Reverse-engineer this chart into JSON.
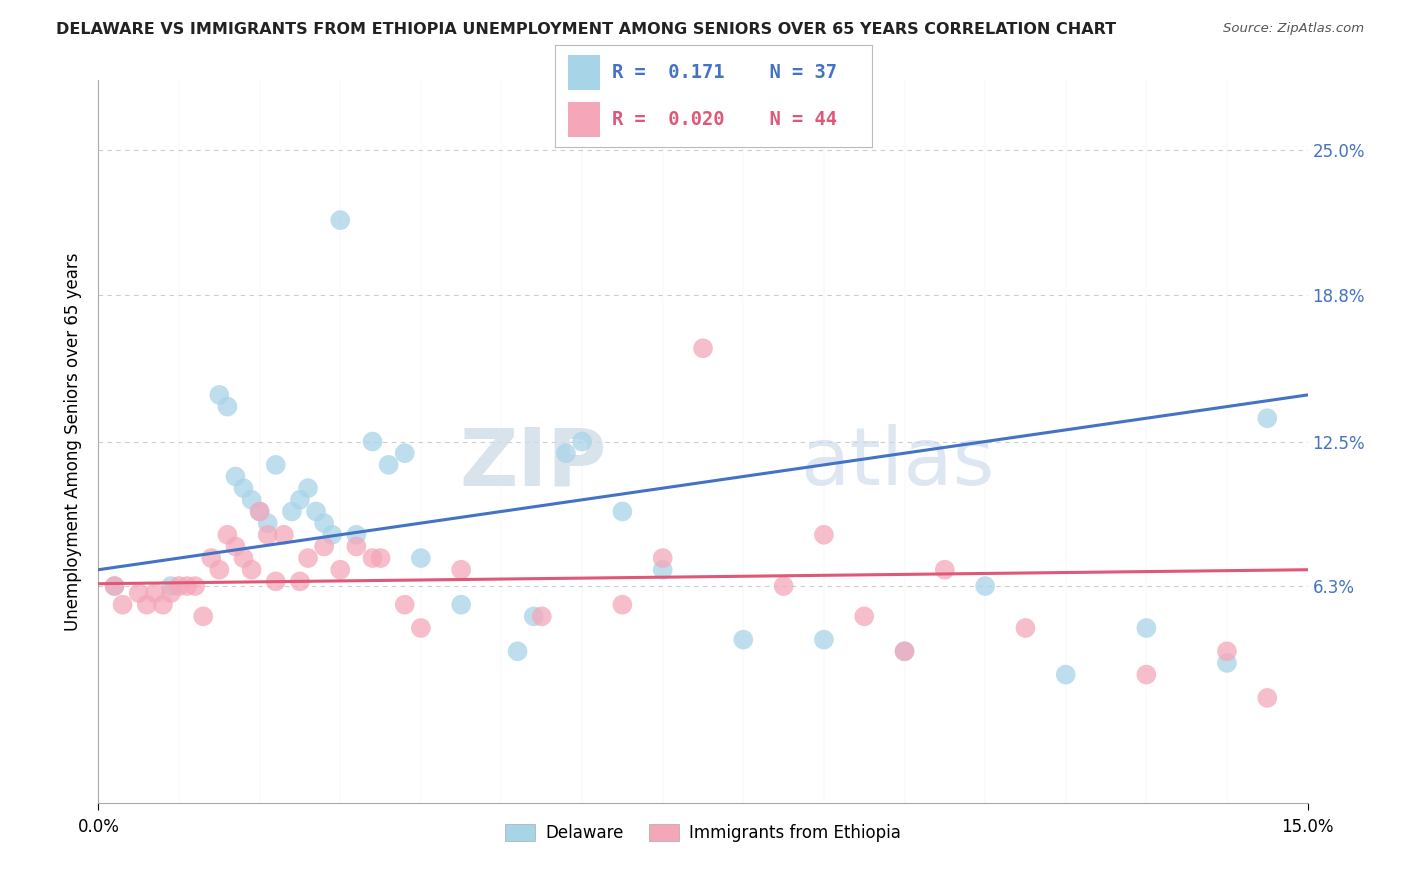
{
  "title": "DELAWARE VS IMMIGRANTS FROM ETHIOPIA UNEMPLOYMENT AMONG SENIORS OVER 65 YEARS CORRELATION CHART",
  "source": "Source: ZipAtlas.com",
  "ylabel": "Unemployment Among Seniors over 65 years",
  "xlim": [
    0.0,
    15.0
  ],
  "ylim": [
    -3.0,
    28.0
  ],
  "yticks": [
    6.3,
    12.5,
    18.8,
    25.0
  ],
  "ytick_labels": [
    "6.3%",
    "12.5%",
    "18.8%",
    "25.0%"
  ],
  "xtick_labels": [
    "0.0%",
    "15.0%"
  ],
  "xtick_pos": [
    0.0,
    15.0
  ],
  "legend_R_blue": "0.171",
  "legend_N_blue": "37",
  "legend_R_pink": "0.020",
  "legend_N_pink": "44",
  "blue_scatter_x": [
    0.2,
    0.9,
    1.5,
    1.6,
    1.7,
    1.8,
    1.9,
    2.0,
    2.1,
    2.2,
    2.4,
    2.5,
    2.6,
    2.7,
    2.8,
    2.9,
    3.0,
    3.2,
    3.4,
    3.6,
    3.8,
    4.0,
    4.5,
    5.2,
    5.4,
    5.8,
    6.0,
    6.5,
    7.0,
    8.0,
    9.0,
    10.0,
    11.0,
    12.0,
    13.0,
    14.0,
    14.5
  ],
  "blue_scatter_y": [
    6.3,
    6.3,
    14.5,
    14.0,
    11.0,
    10.5,
    10.0,
    9.5,
    9.0,
    11.5,
    9.5,
    10.0,
    10.5,
    9.5,
    9.0,
    8.5,
    22.0,
    8.5,
    12.5,
    11.5,
    12.0,
    7.5,
    5.5,
    3.5,
    5.0,
    12.0,
    12.5,
    9.5,
    7.0,
    4.0,
    4.0,
    3.5,
    6.3,
    2.5,
    4.5,
    3.0,
    13.5
  ],
  "pink_scatter_x": [
    0.2,
    0.3,
    0.5,
    0.6,
    0.7,
    0.8,
    0.9,
    1.0,
    1.1,
    1.2,
    1.3,
    1.4,
    1.5,
    1.6,
    1.7,
    1.8,
    1.9,
    2.0,
    2.1,
    2.2,
    2.3,
    2.5,
    2.6,
    2.8,
    3.0,
    3.2,
    3.4,
    3.5,
    3.8,
    4.0,
    4.5,
    5.5,
    6.5,
    7.0,
    7.5,
    8.5,
    9.0,
    9.5,
    10.0,
    10.5,
    11.5,
    13.0,
    14.0,
    14.5
  ],
  "pink_scatter_y": [
    6.3,
    5.5,
    6.0,
    5.5,
    6.0,
    5.5,
    6.0,
    6.3,
    6.3,
    6.3,
    5.0,
    7.5,
    7.0,
    8.5,
    8.0,
    7.5,
    7.0,
    9.5,
    8.5,
    6.5,
    8.5,
    6.5,
    7.5,
    8.0,
    7.0,
    8.0,
    7.5,
    7.5,
    5.5,
    4.5,
    7.0,
    5.0,
    5.5,
    7.5,
    16.5,
    6.3,
    8.5,
    5.0,
    3.5,
    7.0,
    4.5,
    2.5,
    3.5,
    1.5
  ],
  "blue_line_x": [
    0.0,
    15.0
  ],
  "blue_line_y_start": 7.0,
  "blue_line_y_end": 14.5,
  "pink_line_x": [
    0.0,
    15.0
  ],
  "pink_line_y_start": 6.4,
  "pink_line_y_end": 7.0,
  "blue_color": "#a8d4e8",
  "blue_line_color": "#4472c4",
  "pink_color": "#f4a7b9",
  "pink_line_color": "#e05878",
  "watermark_zip": "ZIP",
  "watermark_atlas": "atlas",
  "background_color": "#ffffff",
  "grid_color": "#cccccc"
}
